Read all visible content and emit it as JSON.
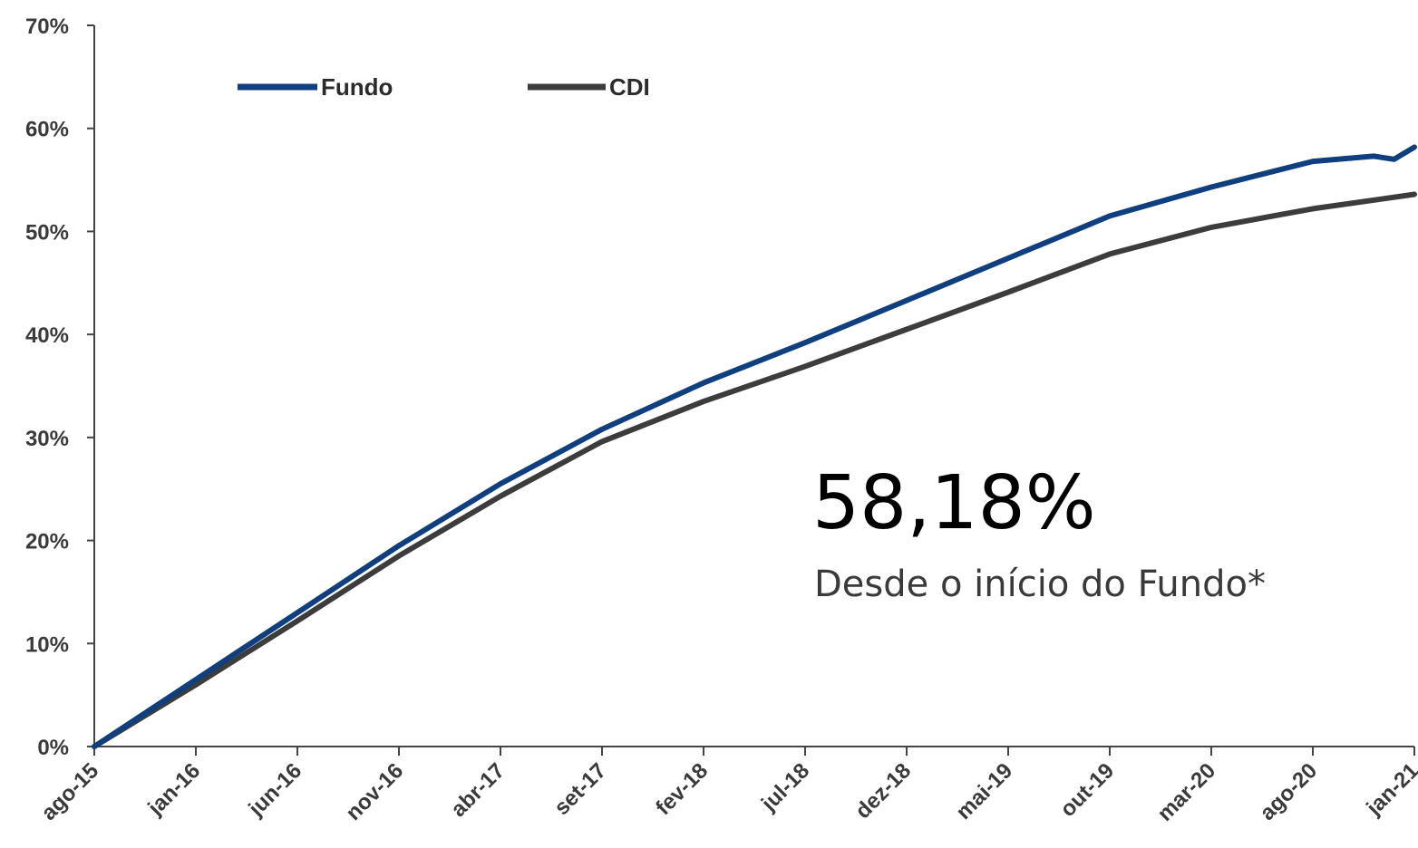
{
  "chart_data": {
    "type": "line",
    "title": "",
    "xlabel": "",
    "ylabel": "",
    "x_ticks": [
      "ago-15",
      "jan-16",
      "jun-16",
      "nov-16",
      "abr-17",
      "set-17",
      "fev-18",
      "jul-18",
      "dez-18",
      "mai-19",
      "out-19",
      "mar-20",
      "ago-20",
      "jan-21"
    ],
    "y_ticks": [
      "0%",
      "10%",
      "20%",
      "30%",
      "40%",
      "50%",
      "60%",
      "70%"
    ],
    "ylim": [
      0,
      70
    ],
    "legend_position": "top-left",
    "grid": false,
    "series": [
      {
        "name": "Fundo",
        "color": "#0f3f7f",
        "x": [
          "ago-15",
          "jan-16",
          "jun-16",
          "nov-16",
          "abr-17",
          "set-17",
          "fev-18",
          "jul-18",
          "dez-18",
          "mai-19",
          "out-19",
          "mar-20",
          "ago-20",
          "nov-20",
          "dez-20",
          "jan-21"
        ],
        "values": [
          0,
          6.5,
          13.0,
          19.5,
          25.5,
          30.8,
          35.3,
          39.2,
          43.3,
          47.4,
          51.5,
          54.3,
          56.8,
          57.3,
          57.0,
          58.18
        ]
      },
      {
        "name": "CDI",
        "color": "#3c3c3c",
        "x": [
          "ago-15",
          "jan-16",
          "jun-16",
          "nov-16",
          "abr-17",
          "set-17",
          "fev-18",
          "jul-18",
          "dez-18",
          "mai-19",
          "out-19",
          "mar-20",
          "ago-20",
          "jan-21"
        ],
        "values": [
          0,
          6.0,
          12.2,
          18.5,
          24.3,
          29.6,
          33.5,
          36.9,
          40.5,
          44.1,
          47.8,
          50.4,
          52.2,
          53.6
        ]
      }
    ],
    "annotation": {
      "value": "58,18%",
      "caption": "Desde o início do Fundo*"
    }
  }
}
